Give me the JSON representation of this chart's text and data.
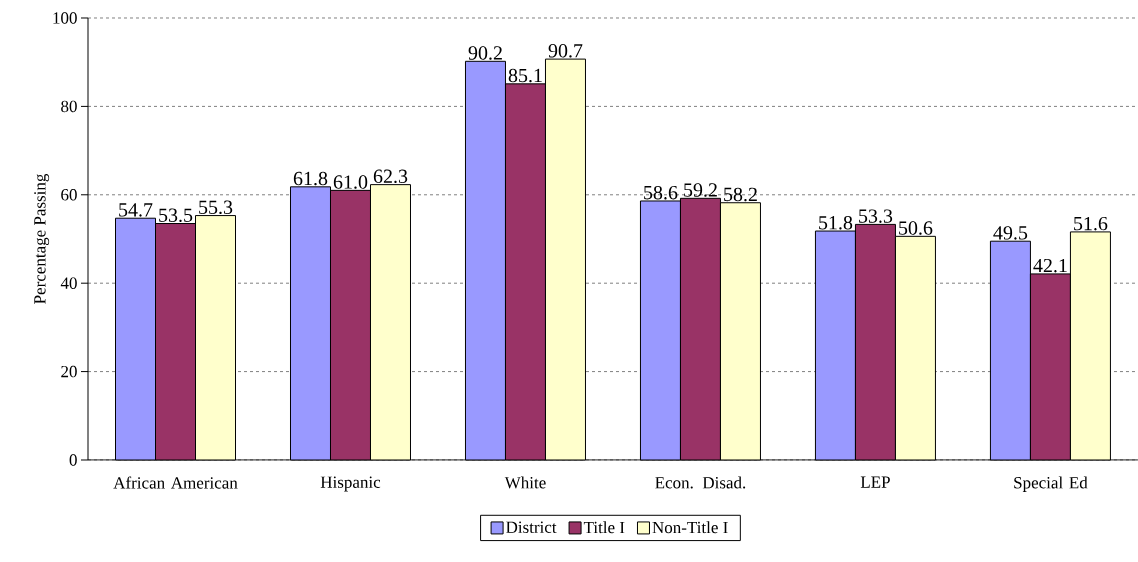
{
  "chart_data": {
    "type": "bar",
    "ylabel": "Percentage Passing",
    "categories": [
      "African American",
      "Hispanic",
      "White",
      "Econ. Disad.",
      "LEP",
      "Special Ed"
    ],
    "series": [
      {
        "name": "District",
        "color": "#9999ff",
        "values": [
          54.7,
          61.8,
          90.2,
          58.6,
          51.8,
          49.5
        ],
        "value_labels": [
          "54.7",
          "61.8",
          "90.2",
          "58.6",
          "51.8",
          "49.5"
        ]
      },
      {
        "name": "Title I",
        "color": "#993366",
        "values": [
          53.5,
          61.0,
          85.1,
          59.2,
          53.3,
          42.1
        ],
        "value_labels": [
          "53.5",
          "61.0",
          "85.1",
          "59.2",
          "53.3",
          "42.1"
        ]
      },
      {
        "name": "Non-Title I",
        "color": "#ffffcc",
        "values": [
          55.3,
          62.3,
          90.7,
          58.2,
          50.6,
          51.6
        ],
        "value_labels": [
          "55.3",
          "62.3",
          "90.7",
          "58.2",
          "50.6",
          "51.6"
        ]
      }
    ],
    "ylim": [
      0,
      100
    ],
    "yticks": [
      0,
      20,
      40,
      60,
      80,
      100
    ],
    "grid": "y",
    "legend": "bottom"
  }
}
